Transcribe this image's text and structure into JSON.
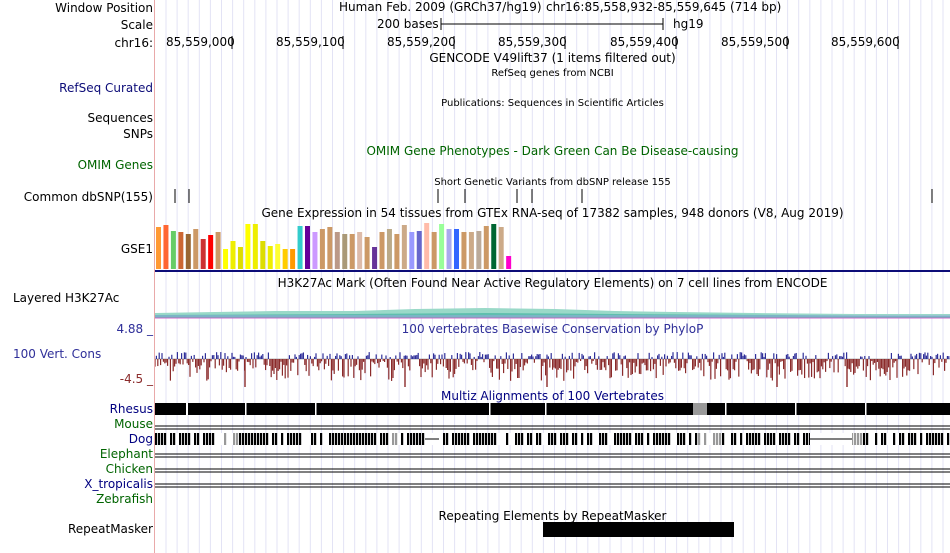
{
  "header": {
    "window_position_label": "Window Position",
    "scale_label": "Scale",
    "chrom_label": "chr16:",
    "assembly": "Human Feb. 2009 (GRCh37/hg19)",
    "position": "chr16:85,558,932-85,559,645 (714 bp)",
    "scale_text": "200 bases",
    "scale_db": "hg19",
    "ticks": [
      "85,559,000",
      "85,559,100",
      "85,559,200",
      "85,559,300",
      "85,559,400",
      "85,559,500",
      "85,559,600"
    ]
  },
  "tracks": {
    "gencode_title": "GENCODE V49lift37 (1 items filtered out)",
    "refseq_title": "RefSeq genes from NCBI",
    "refseq_label": "RefSeq Curated",
    "publications_title": "Publications: Sequences in Scientific Articles",
    "sequences_label": "Sequences",
    "snps_label": "SNPs",
    "omim_label": "OMIM Genes",
    "omim_title": "OMIM Gene Phenotypes - Dark Green Can Be Disease-causing",
    "dbsnp_label": "Common dbSNP(155)",
    "dbsnp_title": "Short Genetic Variants from dbSNP release 155",
    "gtex_title": "Gene Expression in 54 tissues from GTEx RNA-seq of 17382 samples, 948 donors (V8, Aug 2019)",
    "gtex_label": "GSE1",
    "h3k27ac_label": "Layered H3K27Ac",
    "h3k27ac_title": "H3K27Ac Mark (Often Found Near Active Regulatory Elements) on 7 cell lines from ENCODE",
    "cons_max": "4.88 _",
    "cons_label": "100 Vert. Cons",
    "cons_min": "-4.5 _",
    "cons_title": "100 vertebrates Basewise Conservation by PhyloP",
    "multiz_title": "Multiz Alignments of 100 Vertebrates",
    "species": [
      {
        "name": "Rhesus",
        "color": "#000080"
      },
      {
        "name": "Mouse",
        "color": "#006400"
      },
      {
        "name": "Dog",
        "color": "#000080"
      },
      {
        "name": "Elephant",
        "color": "#006400"
      },
      {
        "name": "Chicken",
        "color": "#006400"
      },
      {
        "name": "X_tropicalis",
        "color": "#000080"
      },
      {
        "name": "Zebrafish",
        "color": "#006400"
      }
    ],
    "repeat_label": "RepeatMasker",
    "repeat_title": "Repeating Elements by RepeatMasker"
  },
  "colors": {
    "refseq": "#0c0c78",
    "omim": "#006400",
    "cons_blue": "#2f2f99",
    "cons_red": "#8b2b2b",
    "divider": "#e9a9a9",
    "gridline": "#e3e3f5"
  },
  "gtex_bars": [
    {
      "color": "#ff9933",
      "value": 42
    },
    {
      "color": "#ff6633",
      "value": 44
    },
    {
      "color": "#66cc66",
      "value": 38
    },
    {
      "color": "#cc6633",
      "value": 37
    },
    {
      "color": "#996633",
      "value": 35
    },
    {
      "color": "#cc9966",
      "value": 40
    },
    {
      "color": "#cc3333",
      "value": 30
    },
    {
      "color": "#ff0000",
      "value": 34
    },
    {
      "color": "#cc9966",
      "value": 37
    },
    {
      "color": "#ffff00",
      "value": 20
    },
    {
      "color": "#eeee00",
      "value": 28
    },
    {
      "color": "#dddd00",
      "value": 22
    },
    {
      "color": "#ffff00",
      "value": 45
    },
    {
      "color": "#eeee00",
      "value": 45
    },
    {
      "color": "#dddd00",
      "value": 28
    },
    {
      "color": "#eeee00",
      "value": 23
    },
    {
      "color": "#ffff33",
      "value": 25
    },
    {
      "color": "#ffcc00",
      "value": 20
    },
    {
      "color": "#ff9900",
      "value": 20
    },
    {
      "color": "#33cccc",
      "value": 43
    },
    {
      "color": "#660099",
      "value": 43
    },
    {
      "color": "#cc99ff",
      "value": 37
    },
    {
      "color": "#cc9966",
      "value": 40
    },
    {
      "color": "#cc9966",
      "value": 42
    },
    {
      "color": "#bb9988",
      "value": 37
    },
    {
      "color": "#aa9977",
      "value": 35
    },
    {
      "color": "#cc9966",
      "value": 35
    },
    {
      "color": "#ddbbaa",
      "value": 37
    },
    {
      "color": "#cc9966",
      "value": 32
    },
    {
      "color": "#663399",
      "value": 22
    },
    {
      "color": "#cc9966",
      "value": 37
    },
    {
      "color": "#bbaa88",
      "value": 40
    },
    {
      "color": "#cc9966",
      "value": 35
    },
    {
      "color": "#ccaa88",
      "value": 44
    },
    {
      "color": "#9999ff",
      "value": 37
    },
    {
      "color": "#6666cc",
      "value": 38
    },
    {
      "color": "#ffbbaa",
      "value": 46
    },
    {
      "color": "#cc9966",
      "value": 37
    },
    {
      "color": "#99ff99",
      "value": 45
    },
    {
      "color": "#aaaaee",
      "value": 40
    },
    {
      "color": "#3366ff",
      "value": 40
    },
    {
      "color": "#cc9966",
      "value": 37
    },
    {
      "color": "#ccaa88",
      "value": 37
    },
    {
      "color": "#bbaa99",
      "value": 38
    },
    {
      "color": "#cc9966",
      "value": 43
    },
    {
      "color": "#006633",
      "value": 45
    },
    {
      "color": "#ccaa88",
      "value": 42
    },
    {
      "color": "#ff00cc",
      "value": 13
    }
  ]
}
